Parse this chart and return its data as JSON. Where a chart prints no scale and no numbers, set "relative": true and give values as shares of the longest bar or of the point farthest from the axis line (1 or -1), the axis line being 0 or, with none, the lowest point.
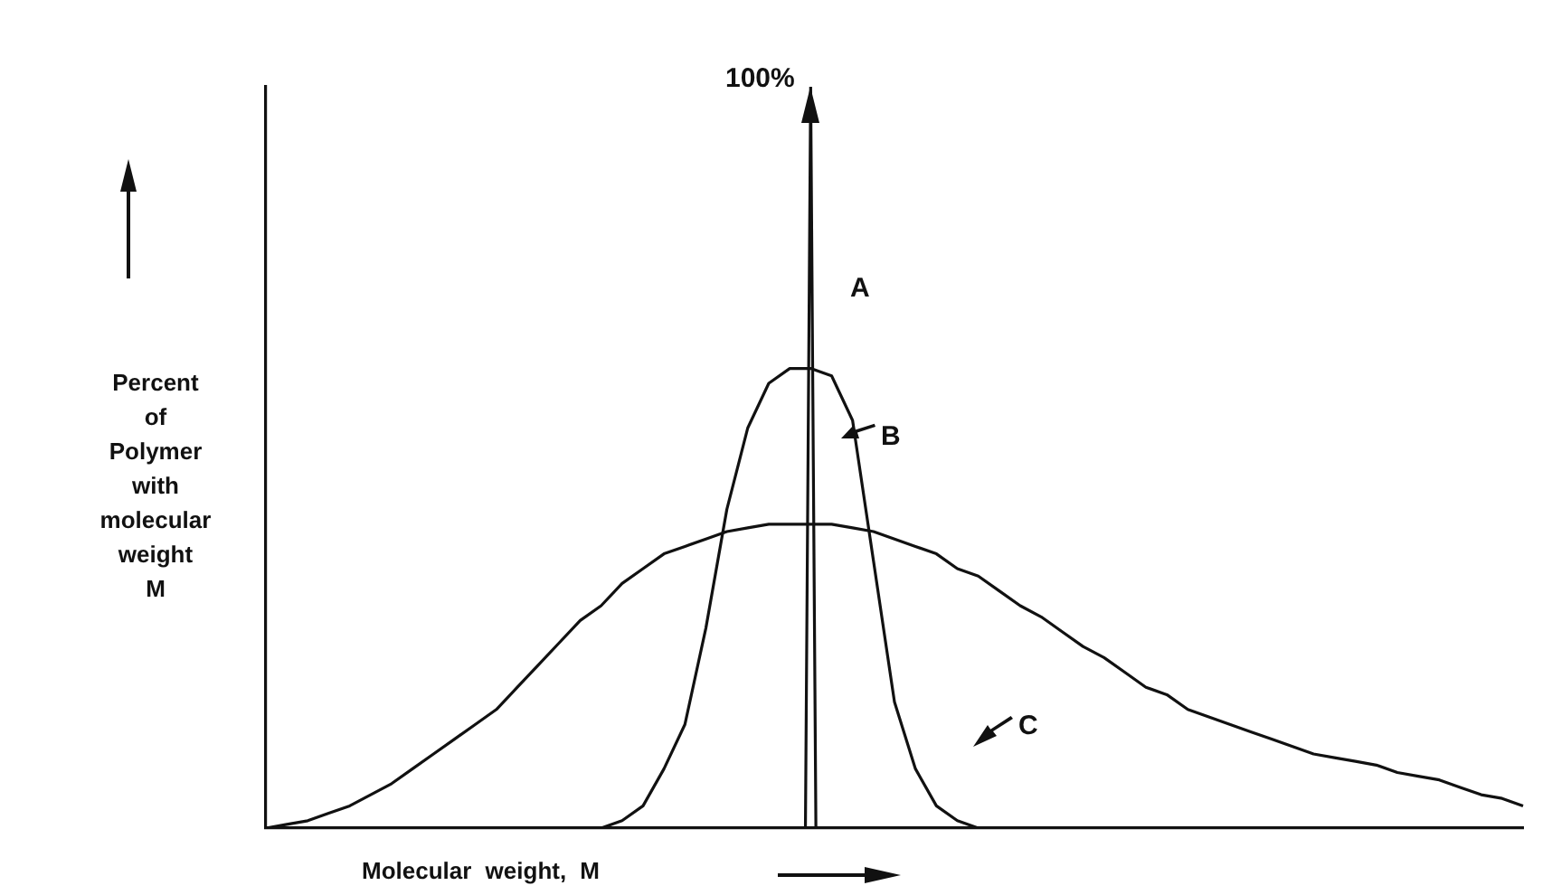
{
  "chart_data": {
    "type": "line",
    "relative": true,
    "xlabel": "Molecular weight, M",
    "ylabel": "Percent of Polymer with molecular weight M",
    "legend": false,
    "grid": false,
    "tick_labels": false,
    "marker": "none",
    "line_style": "solid",
    "categories": [
      null,
      null,
      null,
      null,
      null,
      null,
      null,
      null,
      null,
      null,
      null,
      null,
      null,
      null,
      null,
      null,
      null,
      null,
      null,
      null,
      null,
      null,
      null,
      null,
      null,
      null,
      null,
      null,
      null,
      null,
      null,
      null,
      null,
      null,
      null,
      null,
      null,
      null,
      null,
      null,
      null,
      null,
      null,
      null,
      null,
      null,
      null,
      null,
      null,
      null,
      null,
      null,
      null,
      null,
      null,
      null,
      null,
      null,
      null,
      null,
      null,
      null,
      null,
      null,
      null,
      null,
      null,
      null,
      null,
      null,
      null,
      null,
      null,
      null,
      null,
      null,
      null,
      null,
      null,
      null,
      null,
      null,
      null,
      null,
      null,
      null,
      null,
      null,
      null,
      null,
      null,
      null,
      null,
      null,
      null,
      null,
      null,
      null,
      null,
      null,
      null,
      null,
      null,
      null,
      null,
      null,
      null,
      null,
      null,
      null,
      null,
      null,
      null,
      null,
      null,
      null,
      null,
      null,
      null,
      null,
      null,
      null,
      null,
      null,
      null,
      null,
      null,
      null,
      null,
      null,
      null,
      null,
      null,
      null,
      null,
      null,
      null,
      null,
      null,
      null,
      null,
      null,
      null,
      null,
      null,
      null,
      null,
      null,
      null,
      null,
      null,
      null,
      null,
      null,
      null,
      null,
      null,
      null,
      null,
      null,
      null,
      null,
      null,
      null,
      null,
      null,
      null,
      null,
      null,
      null,
      null,
      null,
      null,
      null,
      null,
      null,
      null,
      null,
      null,
      null,
      null,
      null,
      null,
      null,
      null,
      null,
      null,
      null,
      null,
      null,
      null,
      null,
      null,
      null,
      null,
      null,
      null,
      null,
      null,
      null,
      null,
      null,
      null,
      null,
      null,
      null,
      null,
      null,
      null,
      null,
      null,
      null,
      null,
      null,
      null,
      null,
      null,
      null,
      null,
      null,
      null,
      null,
      null,
      null,
      null,
      null,
      null,
      null,
      null,
      null,
      null,
      null,
      null,
      null,
      null,
      null,
      null,
      null,
      null,
      null,
      null
    ],
    "series": [
      {
        "color": "#111111",
        "values": [
          null,
          null,
          null,
          null,
          null,
          null,
          null,
          null,
          null,
          null,
          null,
          null,
          null,
          null,
          null,
          null,
          null,
          null,
          null,
          null,
          null,
          null,
          null,
          null,
          null,
          null,
          null,
          null,
          null,
          null,
          null,
          null,
          null,
          null,
          null,
          null,
          null,
          null,
          null,
          null,
          null,
          null,
          null,
          null,
          null,
          null,
          null,
          null,
          null,
          null,
          null,
          null,
          null,
          null,
          null,
          null,
          null,
          null,
          null,
          null,
          null,
          null,
          null,
          null,
          null,
          null,
          null,
          null,
          null,
          null,
          null,
          null,
          null,
          null,
          null,
          null,
          null,
          null,
          null,
          null,
          null,
          null,
          null,
          null,
          null,
          null,
          null,
          null,
          null,
          null,
          null,
          null,
          null,
          null,
          null,
          null,
          null,
          null,
          null,
          null,
          null,
          null,
          null,
          0,
          1,
          0,
          null,
          null,
          null,
          null,
          null,
          null,
          null,
          null,
          null,
          null,
          null,
          null,
          null,
          null,
          null,
          null,
          null,
          null,
          null,
          null,
          null,
          null,
          null,
          null,
          null,
          null,
          null,
          null,
          null,
          null,
          null,
          null,
          null,
          null,
          null,
          null,
          null,
          null,
          null,
          null,
          null,
          null,
          null,
          null,
          null,
          null,
          null,
          null,
          null,
          null,
          null,
          null,
          null,
          null,
          null,
          null,
          null,
          null,
          null,
          null,
          null,
          null,
          null,
          null,
          null,
          null,
          null,
          null,
          null,
          null,
          null,
          null,
          null,
          null,
          null,
          null,
          null,
          null,
          null,
          null,
          null,
          null,
          null,
          null,
          null,
          null,
          null,
          null,
          null,
          null,
          null,
          null,
          null,
          null,
          null,
          null,
          null,
          null,
          null,
          null,
          null,
          null,
          null,
          null,
          null,
          null,
          null,
          null,
          null,
          null,
          null,
          null,
          null,
          null,
          null,
          null,
          null,
          null,
          null,
          null,
          null,
          null,
          null,
          null,
          null,
          null,
          null,
          null,
          null,
          null,
          null,
          null,
          null,
          null,
          null
        ]
      },
      {
        "color": "#111111",
        "values": [
          null,
          null,
          null,
          null,
          null,
          null,
          null,
          null,
          null,
          null,
          null,
          null,
          null,
          null,
          null,
          null,
          null,
          null,
          null,
          null,
          null,
          null,
          null,
          null,
          null,
          null,
          null,
          null,
          null,
          null,
          null,
          null,
          null,
          null,
          null,
          null,
          null,
          null,
          null,
          null,
          null,
          null,
          null,
          null,
          null,
          null,
          null,
          null,
          null,
          null,
          null,
          null,
          null,
          null,
          null,
          null,
          null,
          null,
          null,
          null,
          null,
          null,
          null,
          null,
          0,
          null,
          null,
          null,
          0.01,
          null,
          null,
          null,
          0.03,
          null,
          null,
          null,
          0.08,
          null,
          null,
          null,
          0.14,
          null,
          null,
          null,
          0.27,
          null,
          null,
          null,
          0.43,
          null,
          null,
          null,
          0.54,
          null,
          null,
          null,
          0.6,
          null,
          null,
          null,
          0.62,
          null,
          null,
          null,
          0.62,
          null,
          null,
          null,
          0.61,
          null,
          null,
          null,
          0.55,
          null,
          null,
          null,
          0.36,
          null,
          null,
          null,
          0.17,
          null,
          null,
          null,
          0.08,
          null,
          null,
          null,
          0.03,
          null,
          null,
          null,
          0.01,
          null,
          null,
          null,
          0,
          null,
          null,
          null,
          null,
          null,
          null,
          null,
          null,
          null,
          null,
          null,
          null,
          null,
          null,
          null,
          null,
          null,
          null,
          null,
          null,
          null,
          null,
          null,
          null,
          null,
          null,
          null,
          null,
          null,
          null,
          null,
          null,
          null,
          null,
          null,
          null,
          null,
          null,
          null,
          null,
          null,
          null,
          null,
          null,
          null,
          null,
          null,
          null,
          null,
          null,
          null,
          null,
          null,
          null,
          null,
          null,
          null,
          null,
          null,
          null,
          null,
          null,
          null,
          null,
          null,
          null,
          null,
          null,
          null,
          null,
          null,
          null,
          null,
          null,
          null,
          null,
          null,
          null,
          null,
          null,
          null,
          null,
          null,
          null,
          null,
          null,
          null,
          null,
          null,
          null,
          null,
          null,
          null,
          null,
          null,
          null,
          null,
          null,
          null,
          null,
          null,
          null,
          null,
          null
        ]
      },
      {
        "color": "#111111",
        "values": [
          0,
          null,
          null,
          null,
          0.005,
          null,
          null,
          null,
          0.01,
          null,
          null,
          null,
          0.02,
          null,
          null,
          null,
          0.03,
          null,
          null,
          null,
          0.045,
          null,
          null,
          null,
          0.06,
          null,
          null,
          null,
          0.08,
          null,
          null,
          null,
          0.1,
          null,
          null,
          null,
          0.12,
          null,
          null,
          null,
          0.14,
          null,
          null,
          null,
          0.16,
          null,
          null,
          null,
          0.19,
          null,
          null,
          null,
          0.22,
          null,
          null,
          null,
          0.25,
          null,
          null,
          null,
          0.28,
          null,
          null,
          null,
          0.3,
          null,
          null,
          null,
          0.33,
          null,
          null,
          null,
          0.35,
          null,
          null,
          null,
          0.37,
          null,
          null,
          null,
          0.38,
          null,
          null,
          null,
          0.39,
          null,
          null,
          null,
          0.4,
          null,
          null,
          null,
          0.405,
          null,
          null,
          null,
          0.41,
          null,
          null,
          null,
          0.41,
          null,
          null,
          null,
          0.41,
          null,
          null,
          null,
          0.41,
          null,
          null,
          null,
          0.405,
          null,
          null,
          null,
          0.4,
          null,
          null,
          null,
          0.39,
          null,
          null,
          null,
          0.38,
          null,
          null,
          null,
          0.37,
          null,
          null,
          null,
          0.35,
          null,
          null,
          null,
          0.34,
          null,
          null,
          null,
          0.32,
          null,
          null,
          null,
          0.3,
          null,
          null,
          null,
          0.285,
          null,
          null,
          null,
          0.265,
          null,
          null,
          null,
          0.245,
          null,
          null,
          null,
          0.23,
          null,
          null,
          null,
          0.21,
          null,
          null,
          null,
          0.19,
          null,
          null,
          null,
          0.18,
          null,
          null,
          null,
          0.16,
          null,
          null,
          null,
          0.15,
          null,
          null,
          null,
          0.14,
          null,
          null,
          null,
          0.13,
          null,
          null,
          null,
          0.12,
          null,
          null,
          null,
          0.11,
          null,
          null,
          null,
          0.1,
          null,
          null,
          null,
          0.095,
          null,
          null,
          null,
          0.09,
          null,
          null,
          null,
          0.085,
          null,
          null,
          null,
          0.075,
          null,
          null,
          null,
          0.07,
          null,
          null,
          null,
          0.065,
          null,
          null,
          null,
          0.055,
          null,
          null,
          null,
          0.045,
          null,
          null,
          null,
          0.04,
          null,
          null,
          null,
          0.03
        ]
      }
    ],
    "annotations": [
      "100%",
      "A",
      "B",
      "C"
    ]
  }
}
